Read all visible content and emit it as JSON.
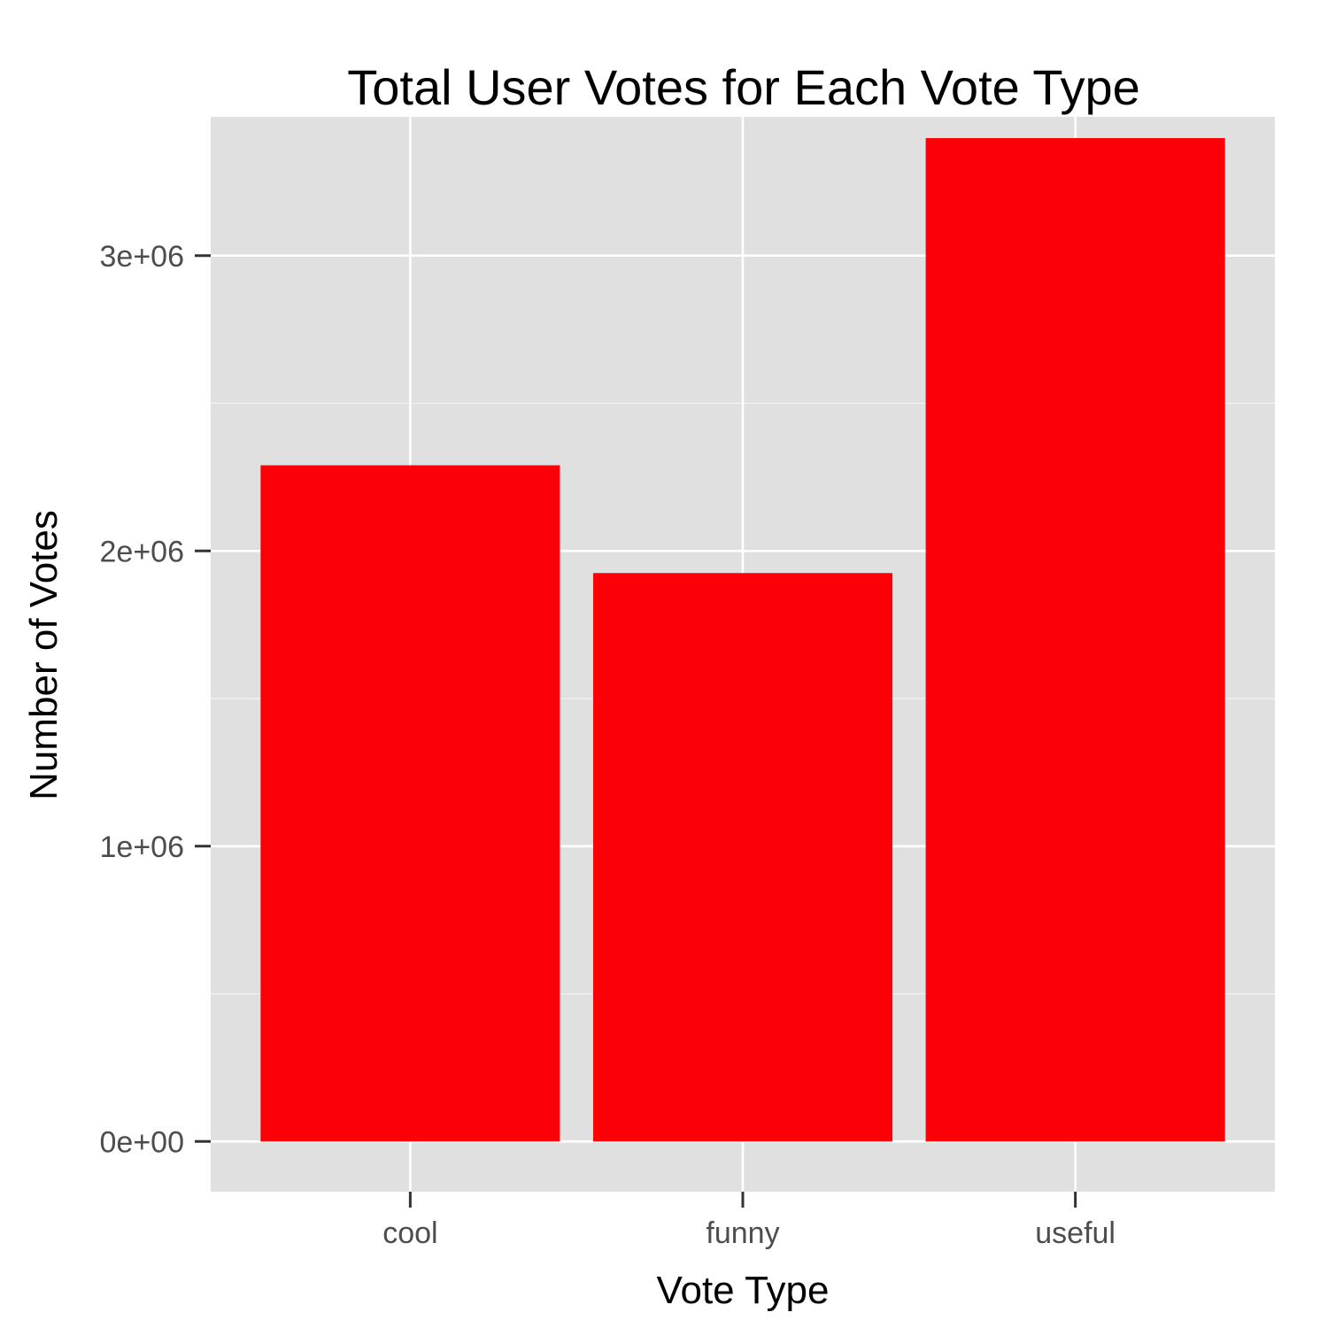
{
  "chart_data": {
    "type": "bar",
    "title": "Total User Votes for Each Vote Type",
    "xlabel": "Vote Type",
    "ylabel": "Number of Votes",
    "categories": [
      "cool",
      "funny",
      "useful"
    ],
    "values": [
      2290000,
      1925000,
      3398000
    ],
    "ylim": [
      -170000,
      3470000
    ],
    "yticks": [
      0,
      1000000,
      2000000,
      3000000
    ],
    "ytick_labels": [
      "0e+00",
      "1e+06",
      "2e+06",
      "3e+06"
    ],
    "grid": true,
    "legend": "none",
    "colors": {
      "bar": "#fb0007",
      "panel": "#e0e0e0",
      "grid": "#ffffff",
      "tick": "#4d4d4d"
    }
  }
}
